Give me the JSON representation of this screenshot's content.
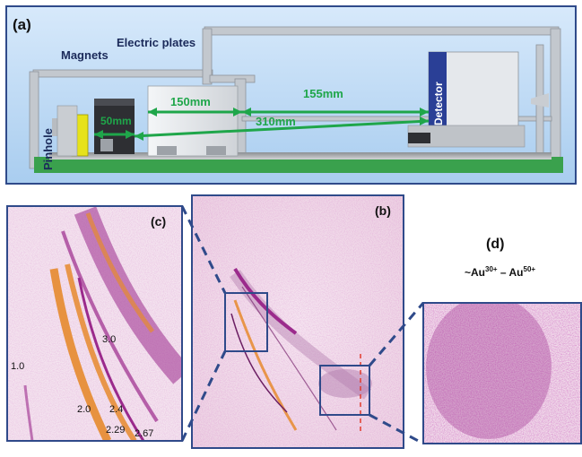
{
  "panel_a": {
    "label": "(a)",
    "parts": {
      "magnets": "Magnets",
      "electric_plates": "Electric plates",
      "pinhole": "Pinhole",
      "detector": "Detector"
    },
    "dimensions": {
      "d50": "50mm",
      "d150": "150mm",
      "d155": "155mm",
      "d310": "310mm"
    },
    "colors": {
      "frame": "#b9bfc6",
      "base_rail": "#3aa14d",
      "dimension_arrow": "#1fa64a",
      "detector_body": "#2a3f96",
      "pinhole_mount": "#e6e21a"
    }
  },
  "panel_b": {
    "label": "(b)"
  },
  "panel_c": {
    "label": "(c)",
    "trace_labels": [
      "1.0",
      "3.0",
      "2.0",
      "2.4",
      "2.29",
      "2.67"
    ]
  },
  "panel_d": {
    "label": "(d)",
    "ion_range": {
      "prefix": "~Au",
      "start_charge": "30+",
      "sep": " – Au",
      "end_charge": "50+"
    }
  },
  "colors": {
    "panel_border": "#2f4a8a",
    "background_magenta": "#f5e2ee",
    "trace_magenta": "#9b2a8c",
    "trace_orange": "#e68a2e",
    "cut_line": "#e23b2b"
  }
}
